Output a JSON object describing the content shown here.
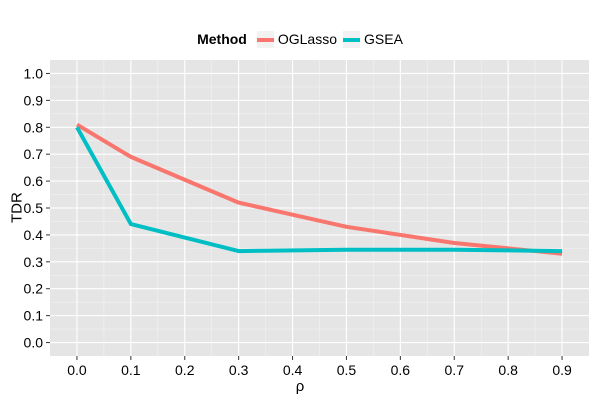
{
  "chart_data": {
    "type": "line",
    "title": "",
    "xlabel": "ρ",
    "ylabel": "TDR",
    "legend_title": "Method",
    "legend_position": "top",
    "x": [
      0.0,
      0.1,
      0.3,
      0.5,
      0.7,
      0.9
    ],
    "xticks": [
      "0.0",
      "0.1",
      "0.2",
      "0.3",
      "0.4",
      "0.5",
      "0.6",
      "0.7",
      "0.8",
      "0.9"
    ],
    "xtick_values": [
      0.0,
      0.1,
      0.2,
      0.3,
      0.4,
      0.5,
      0.6,
      0.7,
      0.8,
      0.9
    ],
    "yticks": [
      "0.0",
      "0.1",
      "0.2",
      "0.3",
      "0.4",
      "0.5",
      "0.6",
      "0.7",
      "0.8",
      "0.9",
      "1.0"
    ],
    "ytick_values": [
      0.0,
      0.1,
      0.2,
      0.3,
      0.4,
      0.5,
      0.6,
      0.7,
      0.8,
      0.9,
      1.0
    ],
    "xlim": [
      -0.05,
      0.95
    ],
    "ylim": [
      -0.05,
      1.05
    ],
    "grid": true,
    "series": [
      {
        "name": "OGLasso",
        "color": "#f8766d",
        "values": [
          0.81,
          0.69,
          0.52,
          0.43,
          0.37,
          0.33
        ]
      },
      {
        "name": "GSEA",
        "color": "#00bfc4",
        "values": [
          0.8,
          0.44,
          0.34,
          0.345,
          0.345,
          0.34
        ]
      }
    ]
  }
}
